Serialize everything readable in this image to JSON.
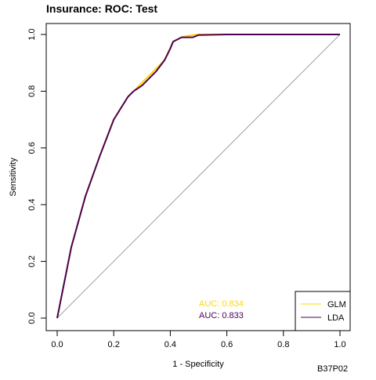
{
  "chart_data": {
    "type": "line",
    "title": "Insurance: ROC: Test",
    "xlabel": "1 - Specificity",
    "ylabel": "Sensitivity",
    "xlim": [
      0,
      1
    ],
    "ylim": [
      0,
      1
    ],
    "xticks": [
      "0.0",
      "0.2",
      "0.4",
      "0.6",
      "0.8",
      "1.0"
    ],
    "yticks": [
      "0.0",
      "0.2",
      "0.4",
      "0.6",
      "0.8",
      "1.0"
    ],
    "grid": false,
    "legend_position": "bottom-right",
    "reference_line": {
      "x": [
        0,
        1
      ],
      "y": [
        0,
        1
      ]
    },
    "series": [
      {
        "name": "GLM",
        "color": "#FFD700",
        "auc_label": "AUC: 0.834",
        "x": [
          0,
          0.02,
          0.05,
          0.1,
          0.15,
          0.2,
          0.25,
          0.27,
          0.3,
          0.35,
          0.38,
          0.41,
          0.44,
          0.46,
          0.48,
          0.5,
          0.6,
          1.0
        ],
        "y": [
          0,
          0.1,
          0.25,
          0.43,
          0.57,
          0.7,
          0.78,
          0.8,
          0.83,
          0.88,
          0.91,
          0.975,
          0.99,
          0.995,
          0.998,
          1.0,
          1.0,
          1.0
        ]
      },
      {
        "name": "LDA",
        "color": "#4B0055",
        "auc_label": "AUC: 0.833",
        "x": [
          0,
          0.02,
          0.05,
          0.1,
          0.15,
          0.2,
          0.25,
          0.27,
          0.3,
          0.35,
          0.38,
          0.4,
          0.41,
          0.44,
          0.48,
          0.5,
          0.6,
          1.0
        ],
        "y": [
          0,
          0.1,
          0.25,
          0.43,
          0.57,
          0.7,
          0.78,
          0.8,
          0.82,
          0.87,
          0.91,
          0.95,
          0.975,
          0.99,
          0.99,
          0.998,
          1.0,
          1.0
        ]
      }
    ]
  },
  "footer": {
    "code": "B37P02"
  },
  "colors": {
    "diagonal": "#A0A0A0",
    "axis": "#000000"
  }
}
